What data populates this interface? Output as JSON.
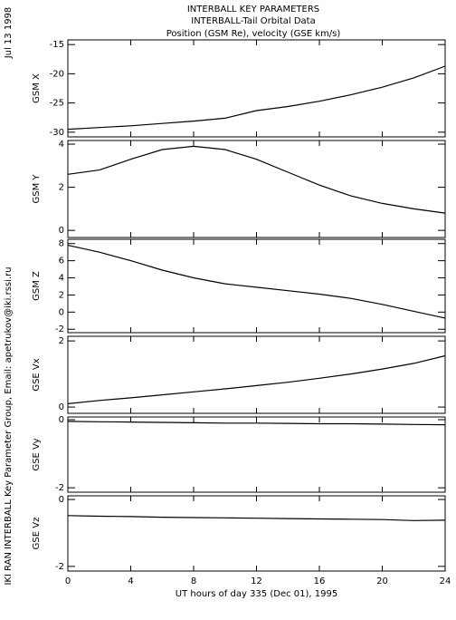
{
  "header": {
    "title": "INTERBALL KEY PARAMETERS",
    "subtitle": "INTERBALL-Tail Orbital Data",
    "units": "Position (GSM Re), velocity (GSE km/s)",
    "date": "Jul 13 1998",
    "credit": "IKI RAN INTERBALL Key Parameter Group, Email: apetrukov@iki.rssi.ru"
  },
  "chart_data": [
    {
      "type": "line",
      "ylabel": "GSM X",
      "x": [
        0,
        2,
        4,
        6,
        8,
        10,
        12,
        14,
        16,
        18,
        20,
        22,
        24
      ],
      "values": [
        -29.5,
        -29.2,
        -28.9,
        -28.5,
        -28.1,
        -27.6,
        -26.3,
        -25.6,
        -24.7,
        -23.6,
        -22.3,
        -20.7,
        -18.7
      ],
      "xlim": [
        0,
        24
      ],
      "ylim": [
        -30.8,
        -14.2
      ],
      "yticks": [
        -30,
        -25,
        -20,
        -15
      ]
    },
    {
      "type": "line",
      "ylabel": "GSM Y",
      "x": [
        0,
        2,
        4,
        6,
        8,
        10,
        12,
        14,
        16,
        18,
        20,
        22,
        24
      ],
      "values": [
        2.6,
        2.8,
        3.3,
        3.75,
        3.9,
        3.75,
        3.3,
        2.7,
        2.1,
        1.6,
        1.25,
        1.0,
        0.8
      ],
      "xlim": [
        0,
        24
      ],
      "ylim": [
        -0.33,
        4.17
      ],
      "yticks": [
        0,
        2,
        4
      ]
    },
    {
      "type": "line",
      "ylabel": "GSM Z",
      "x": [
        0,
        2,
        4,
        6,
        8,
        10,
        12,
        14,
        16,
        18,
        20,
        22,
        24
      ],
      "values": [
        7.8,
        7.0,
        6.0,
        4.9,
        4.0,
        3.3,
        2.9,
        2.5,
        2.1,
        1.6,
        0.9,
        0.1,
        -0.7
      ],
      "xlim": [
        0,
        24
      ],
      "ylim": [
        -2.4,
        8.5
      ],
      "yticks": [
        -2,
        0,
        2,
        4,
        6,
        8
      ]
    },
    {
      "type": "line",
      "ylabel": "GSE Vx",
      "x": [
        0,
        2,
        4,
        6,
        8,
        10,
        12,
        14,
        16,
        18,
        20,
        22,
        24
      ],
      "values": [
        0.1,
        0.2,
        0.28,
        0.37,
        0.46,
        0.55,
        0.65,
        0.75,
        0.87,
        1.0,
        1.15,
        1.32,
        1.55
      ],
      "xlim": [
        0,
        24
      ],
      "ylim": [
        -0.19,
        2.14
      ],
      "yticks": [
        0,
        2
      ]
    },
    {
      "type": "line",
      "ylabel": "GSE Vy",
      "x": [
        0,
        2,
        4,
        6,
        8,
        10,
        12,
        14,
        16,
        18,
        20,
        22,
        24
      ],
      "values": [
        -0.05,
        -0.06,
        -0.07,
        -0.08,
        -0.09,
        -0.1,
        -0.1,
        -0.11,
        -0.12,
        -0.12,
        -0.13,
        -0.14,
        -0.15
      ],
      "xlim": [
        0,
        24
      ],
      "ylim": [
        -2.13,
        0.08
      ],
      "yticks": [
        -2,
        0
      ]
    },
    {
      "type": "line",
      "ylabel": "GSE Vz",
      "x": [
        0,
        2,
        4,
        6,
        8,
        10,
        12,
        14,
        16,
        18,
        20,
        22,
        24
      ],
      "values": [
        -0.48,
        -0.5,
        -0.51,
        -0.53,
        -0.54,
        -0.55,
        -0.56,
        -0.57,
        -0.58,
        -0.59,
        -0.6,
        -0.63,
        -0.62
      ],
      "xlim": [
        0,
        24
      ],
      "ylim": [
        -2.14,
        0.11
      ],
      "yticks": [
        -2,
        0
      ],
      "xticks": [
        0,
        4,
        8,
        12,
        16,
        20,
        24
      ],
      "xlabel": "UT hours of day 335 (Dec 01), 1995"
    }
  ]
}
